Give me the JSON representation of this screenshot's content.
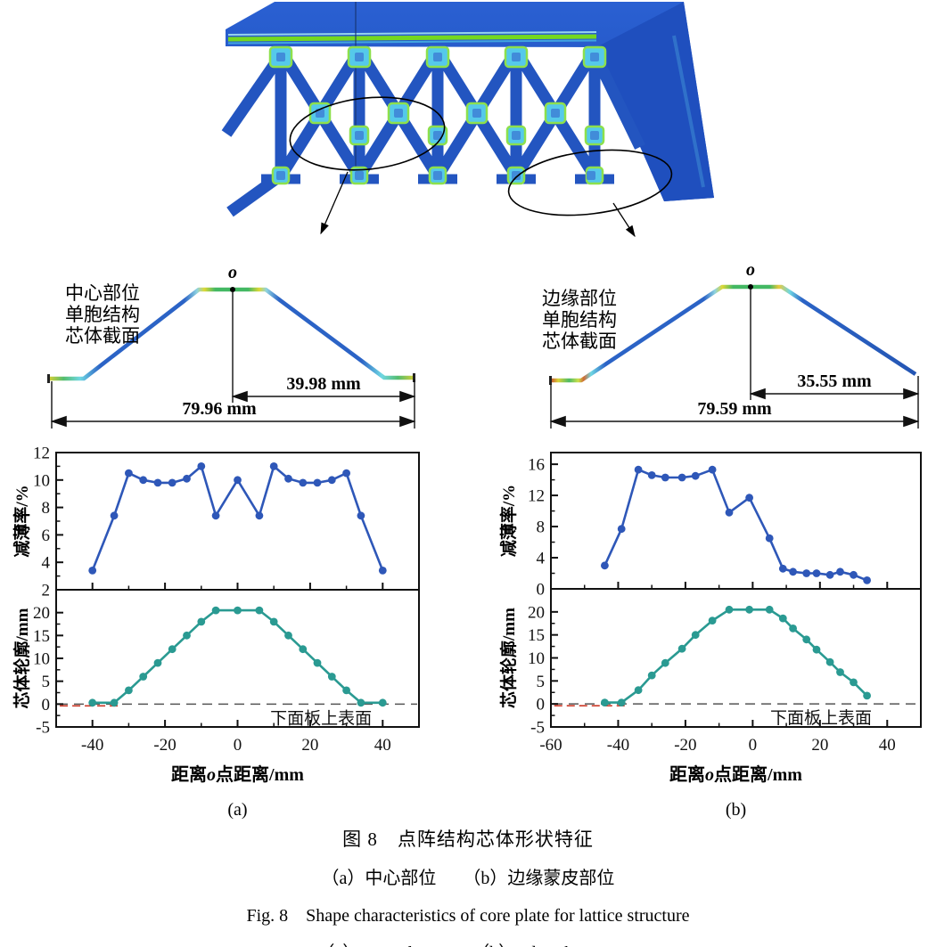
{
  "colors": {
    "line_blue": "#2e57b8",
    "line_teal": "#2a9a92",
    "axis": "#111111",
    "dashed": "#555555",
    "red_mark": "#cc3a28",
    "fea_blue": "#2254c6",
    "fea_wedge_blue": "#1f4fbe",
    "fea_green_stripe": "#74d81f",
    "node_cyan": "#55c9ea",
    "node_green_ring": "#8de04c",
    "node_core": "#3f86d8",
    "profile_blue": "#2b63c6",
    "profile_green": "#43b863",
    "profile_cyan": "#6fd7e3",
    "profile_yellow": "#ddd835"
  },
  "sections": {
    "left": {
      "label_lines": [
        "中心部位",
        "单胞结构",
        "芯体截面"
      ],
      "origin_label": "o",
      "dim_half": "39.98 mm",
      "dim_total": "79.96 mm"
    },
    "right": {
      "label_lines": [
        "边缘部位",
        "单胞结构",
        "芯体截面"
      ],
      "origin_label": "o",
      "dim_half": "35.55 mm",
      "dim_total": "79.59 mm"
    }
  },
  "pairs": [
    {
      "id": "chart-a",
      "xlabel": "距离o点距离/mm",
      "xlim": [
        -50,
        50
      ],
      "xticks": [
        -40,
        -20,
        0,
        20,
        40
      ],
      "sub_label": "(a)",
      "chart_indexes": [
        0,
        1
      ]
    },
    {
      "id": "chart-b",
      "xlabel": "距离o点距离/mm",
      "xlim": [
        -60,
        50
      ],
      "xticks": [
        -60,
        -40,
        -20,
        0,
        20,
        40
      ],
      "sub_label": "(b)",
      "chart_indexes": [
        2,
        3
      ]
    }
  ],
  "chart_data": [
    {
      "id": "central_thinning_rate",
      "type": "line",
      "ylabel": "减薄率/%",
      "ylim": [
        2,
        12
      ],
      "yticks": [
        2,
        4,
        6,
        8,
        10,
        12
      ],
      "color": "#2e57b8",
      "x": [
        -40,
        -34,
        -30,
        -26,
        -22,
        -18,
        -14,
        -10,
        -6,
        0,
        6,
        10,
        14,
        18,
        22,
        26,
        30,
        34,
        40
      ],
      "y": [
        3.4,
        7.4,
        10.5,
        10.0,
        9.8,
        9.8,
        10.1,
        11.0,
        7.4,
        10.0,
        7.4,
        11.0,
        10.1,
        9.8,
        9.8,
        10.0,
        10.5,
        7.4,
        3.4
      ]
    },
    {
      "id": "central_core_profile",
      "type": "line",
      "ylabel": "芯体轮廓/mm",
      "ylim": [
        -5,
        25
      ],
      "yticks": [
        -5,
        0,
        5,
        10,
        15,
        20
      ],
      "color": "#2a9a92",
      "dashed_y": 0,
      "red_segment": [
        -49,
        -33
      ],
      "annotation": "下面板上表面",
      "x": [
        -40,
        -34,
        -30,
        -26,
        -22,
        -18,
        -14,
        -10,
        -6,
        0,
        6,
        10,
        14,
        18,
        22,
        26,
        30,
        34,
        40
      ],
      "y": [
        0.3,
        0.3,
        3,
        6,
        9,
        12,
        15,
        18,
        20.5,
        20.5,
        20.5,
        18,
        15,
        12,
        9,
        6,
        3,
        0.3,
        0.3
      ]
    },
    {
      "id": "edge_thinning_rate",
      "type": "line",
      "ylabel": "减薄率/%",
      "ylim": [
        0,
        17.5
      ],
      "yticks": [
        0,
        4,
        8,
        12,
        16
      ],
      "color": "#2e57b8",
      "x": [
        -44,
        -39,
        -34,
        -30,
        -26,
        -21,
        -17,
        -12,
        -7,
        -1,
        5,
        9,
        12,
        16,
        19,
        23,
        26,
        30,
        34
      ],
      "y": [
        3.0,
        7.7,
        15.3,
        14.6,
        14.3,
        14.3,
        14.5,
        15.3,
        9.8,
        11.7,
        6.5,
        2.6,
        2.2,
        2.0,
        2.0,
        1.8,
        2.2,
        1.8,
        1.1
      ]
    },
    {
      "id": "edge_core_profile",
      "type": "line",
      "ylabel": "芯体轮廓/mm",
      "ylim": [
        -5,
        25
      ],
      "yticks": [
        -5,
        0,
        5,
        10,
        15,
        20
      ],
      "color": "#2a9a92",
      "dashed_y": 0,
      "red_segment": [
        -59,
        -38
      ],
      "annotation": "下面板上表面",
      "x": [
        -44,
        -39,
        -34,
        -30,
        -26,
        -21,
        -17,
        -12,
        -7,
        -1,
        5,
        9,
        12,
        16,
        19,
        23,
        26,
        30,
        34
      ],
      "y": [
        0.3,
        0.3,
        3.0,
        6.2,
        8.9,
        12.0,
        15.0,
        18.1,
        20.5,
        20.5,
        20.5,
        18.6,
        16.4,
        14.0,
        11.8,
        9.1,
        6.9,
        4.7,
        1.8
      ]
    }
  ],
  "captions": {
    "line1": "图 8　点阵结构芯体形状特征",
    "line2": "（a）中心部位　　（b）边缘蒙皮部位",
    "line3": "Fig. 8　Shape characteristics of core plate for lattice structure",
    "line4": "（a）Central part　　（b）Edge skin part"
  }
}
